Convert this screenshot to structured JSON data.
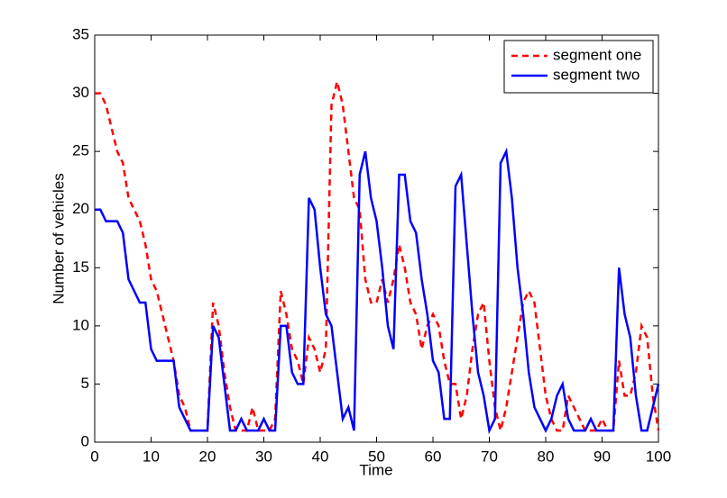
{
  "chart_data": {
    "type": "line",
    "x_label": "Time",
    "y_label": "Number of vehicles",
    "x": [
      0,
      1,
      2,
      3,
      4,
      5,
      6,
      7,
      8,
      9,
      10,
      11,
      12,
      13,
      14,
      15,
      16,
      17,
      18,
      19,
      20,
      21,
      22,
      23,
      24,
      25,
      26,
      27,
      28,
      29,
      30,
      31,
      32,
      33,
      34,
      35,
      36,
      37,
      38,
      39,
      40,
      41,
      42,
      43,
      44,
      45,
      46,
      47,
      48,
      49,
      50,
      51,
      52,
      53,
      54,
      55,
      56,
      57,
      58,
      59,
      60,
      61,
      62,
      63,
      64,
      65,
      66,
      67,
      68,
      69,
      70,
      71,
      72,
      73,
      74,
      75,
      76,
      77,
      78,
      79,
      80,
      81,
      82,
      83,
      84,
      85,
      86,
      87,
      88,
      89,
      90,
      91,
      92,
      93,
      94,
      95,
      96,
      97,
      98,
      99,
      100
    ],
    "series": [
      {
        "name": "segment one",
        "color": "#ff0000",
        "dashed": true,
        "values": [
          30,
          30,
          29,
          27,
          25,
          24,
          21,
          20,
          19,
          17,
          14,
          13,
          11,
          9,
          7,
          4,
          3,
          1,
          1,
          1,
          1,
          12,
          10,
          6,
          3,
          1,
          1,
          1,
          3,
          1,
          1,
          1,
          2,
          13,
          11,
          8,
          7,
          5,
          9,
          8,
          6,
          8,
          29,
          31,
          29,
          25,
          21,
          20,
          14,
          12,
          12,
          14,
          12,
          14,
          17,
          15,
          12,
          11,
          8,
          10,
          11,
          10,
          7,
          5,
          5,
          2,
          4,
          8,
          11,
          12,
          7,
          3,
          1,
          3,
          6,
          9,
          12,
          13,
          12,
          8,
          4,
          2,
          1,
          1,
          4,
          3,
          2,
          1,
          1,
          1,
          2,
          1,
          1,
          7,
          4,
          4,
          6,
          10,
          9,
          4,
          1
        ]
      },
      {
        "name": "segment two",
        "color": "#0000ff",
        "dashed": false,
        "values": [
          20,
          20,
          19,
          19,
          19,
          18,
          14,
          13,
          12,
          12,
          8,
          7,
          7,
          7,
          7,
          3,
          2,
          1,
          1,
          1,
          1,
          10,
          9,
          5,
          1,
          1,
          2,
          1,
          1,
          1,
          2,
          1,
          1,
          10,
          10,
          6,
          5,
          5,
          21,
          20,
          15,
          11,
          10,
          6,
          2,
          3,
          1,
          23,
          25,
          21,
          19,
          15,
          10,
          8,
          23,
          23,
          19,
          18,
          14,
          11,
          7,
          6,
          2,
          2,
          22,
          23,
          17,
          11,
          6,
          4,
          1,
          2,
          24,
          25,
          21,
          15,
          11,
          6,
          3,
          2,
          1,
          2,
          4,
          5,
          2,
          1,
          1,
          1,
          2,
          1,
          1,
          1,
          1,
          15,
          11,
          9,
          4,
          1,
          1,
          3,
          5
        ]
      }
    ],
    "xlim": [
      0,
      100
    ],
    "xticks": [
      0,
      10,
      20,
      30,
      40,
      50,
      60,
      70,
      80,
      90,
      100
    ],
    "ylim": [
      0,
      35
    ],
    "yticks": [
      0,
      5,
      10,
      15,
      20,
      25,
      30,
      35
    ],
    "legend": "top-right"
  }
}
